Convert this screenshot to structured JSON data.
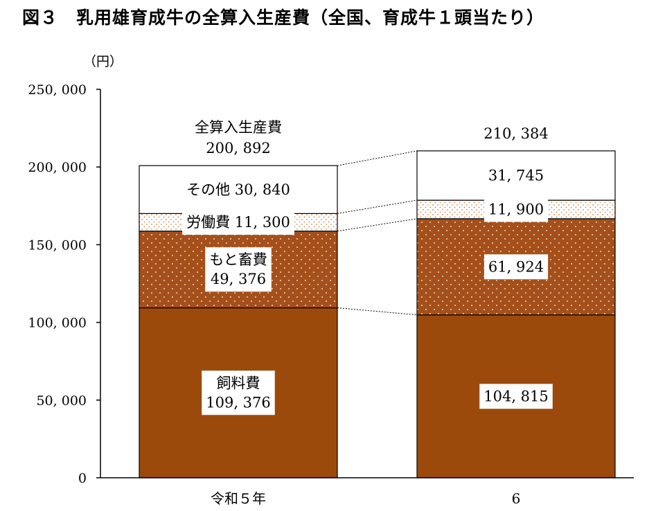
{
  "title": "図３　乳用雄育成牛の全算入生産費（全国、育成牛１頭当たり）",
  "colors": {
    "feed": "#9b4a0c",
    "calf": "#a5501b",
    "labor_bg": "#ffffff",
    "labor_dot": "#d4843a",
    "other": "#ffffff",
    "calf_dot": "#ffffff"
  },
  "chart_data": {
    "type": "bar",
    "stacked": true,
    "categories": [
      "令和５年",
      "6"
    ],
    "unit_label": "（円）",
    "ylim": [
      0,
      250000
    ],
    "yticks": [
      0,
      50000,
      100000,
      150000,
      200000,
      250000
    ],
    "ytick_labels": [
      "0",
      "50, 000",
      "100, 000",
      "150, 000",
      "200, 000",
      "250, 000"
    ],
    "series": [
      {
        "name": "飼料費",
        "values": [
          109376,
          104815
        ],
        "labels": [
          "飼料費\n109, 376",
          "104, 815"
        ]
      },
      {
        "name": "もと畜費",
        "values": [
          49376,
          61924
        ],
        "labels": [
          "もと畜費\n49, 376",
          "61, 924"
        ]
      },
      {
        "name": "労働費",
        "values": [
          11300,
          11900
        ],
        "labels": [
          "労働費 11, 300",
          "11, 900"
        ]
      },
      {
        "name": "その他",
        "values": [
          30840,
          31745
        ],
        "labels": [
          "その他 30, 840",
          "31, 745"
        ]
      }
    ],
    "totals": [
      200892,
      210384
    ],
    "total_labels": [
      "全算入生産費\n200, 892",
      "210, 384"
    ],
    "grid": false,
    "connector_lines": true
  }
}
